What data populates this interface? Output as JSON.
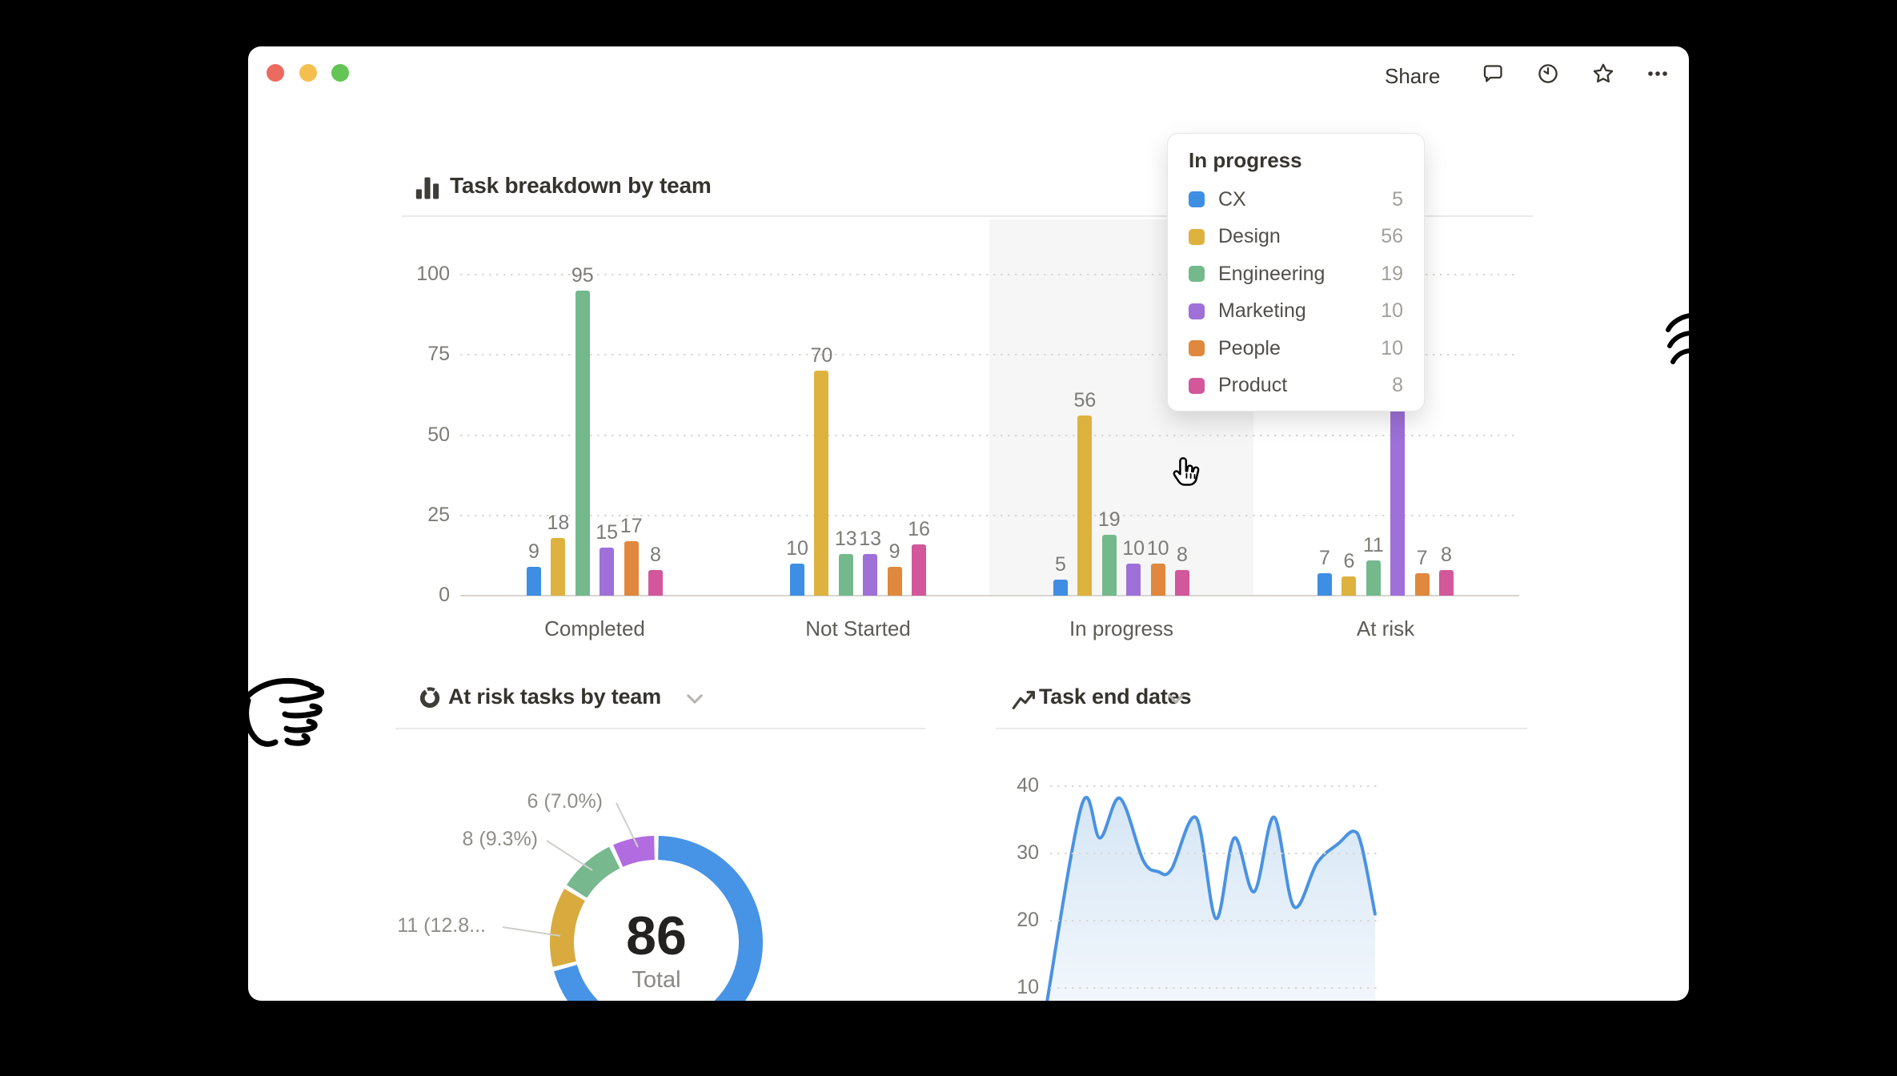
{
  "toolbar": {
    "share": "Share",
    "icons": [
      "comment-icon",
      "clock-icon",
      "star-icon",
      "more-icon"
    ]
  },
  "traffic_lights": [
    "#ed6a5f",
    "#f5bf4f",
    "#62c554"
  ],
  "tooltip": {
    "title": "In progress",
    "rows": [
      {
        "label": "CX",
        "value": "5",
        "color": "#3e8ee3"
      },
      {
        "label": "Design",
        "value": "56",
        "color": "#ddb23e"
      },
      {
        "label": "Engineering",
        "value": "19",
        "color": "#74b98c"
      },
      {
        "label": "Marketing",
        "value": "10",
        "color": "#9e70d8"
      },
      {
        "label": "People",
        "value": "10",
        "color": "#e0883d"
      },
      {
        "label": "Product",
        "value": "8",
        "color": "#d2579b"
      }
    ]
  },
  "chart_data": [
    {
      "type": "bar",
      "title": "Task breakdown by team",
      "categories": [
        "Completed",
        "Not Started",
        "In progress",
        "At risk"
      ],
      "series": [
        {
          "name": "CX",
          "color": "#3e8ee3",
          "values": [
            9,
            10,
            5,
            7
          ]
        },
        {
          "name": "Design",
          "color": "#ddb23e",
          "values": [
            18,
            70,
            56,
            6
          ]
        },
        {
          "name": "Engineering",
          "color": "#74b98c",
          "values": [
            95,
            13,
            19,
            11
          ]
        },
        {
          "name": "Marketing",
          "color": "#9e70d8",
          "values": [
            15,
            13,
            10,
            61
          ]
        },
        {
          "name": "People",
          "color": "#e0883d",
          "values": [
            17,
            9,
            10,
            7
          ]
        },
        {
          "name": "Product",
          "color": "#d2579b",
          "values": [
            8,
            16,
            8,
            8
          ]
        }
      ],
      "ylim": [
        0,
        100
      ],
      "y_ticks": [
        100,
        75,
        50,
        25,
        0
      ],
      "highlighted_category": "In progress",
      "grid": "dotted"
    },
    {
      "type": "pie",
      "title": "At risk tasks by team",
      "total_value": "86",
      "total_label": "Total",
      "slices": [
        {
          "value": 61,
          "color": "#4793e6",
          "callout": null
        },
        {
          "value": 11,
          "color": "#d9aa3e",
          "callout": "11 (12.8..."
        },
        {
          "value": 8,
          "color": "#77b88f",
          "callout": "8 (9.3%)"
        },
        {
          "value": 6,
          "color": "#b16ce0",
          "callout": "6 (7.0%)"
        }
      ]
    },
    {
      "type": "area",
      "title": "Task end dates",
      "color": "#4a92e2",
      "y_ticks": [
        40,
        30,
        20,
        10
      ],
      "ylim": [
        5,
        42
      ],
      "x": [
        0,
        11,
        16.5,
        22.5,
        29.5,
        34,
        38,
        45.5,
        51.5,
        57,
        63,
        69,
        75,
        82,
        88.5,
        93,
        95.5,
        99.5
      ],
      "values": [
        6.5,
        37.2,
        32.3,
        38.2,
        29,
        27.3,
        27.6,
        35.3,
        20.3,
        32.3,
        24.3,
        35.4,
        22.1,
        28.6,
        31.5,
        33.3,
        31,
        21
      ]
    }
  ]
}
